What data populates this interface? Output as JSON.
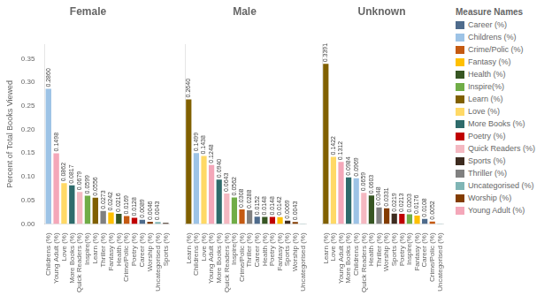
{
  "chart_data": [
    {
      "type": "bar",
      "title": "Female",
      "ylabel": "Percent of Total Books Viewed",
      "categories": [
        "Childrens (%)",
        "Young Adult (%)",
        "Love (%)",
        "More Books (%)",
        "Quick Readers (%)",
        "Inspire(%)",
        "Learn (%)",
        "Thriller (%)",
        "Fantasy (%)",
        "Health (%)",
        "Crime/Polic (%)",
        "Poetry (%)",
        "Career (%)",
        "Worship (%)",
        "Uncategorised (%)",
        "Sports (%)"
      ],
      "values": [
        0.286,
        0.1498,
        0.0862,
        0.0817,
        0.0679,
        0.0599,
        0.0556,
        0.0273,
        0.0242,
        0.0216,
        0.0169,
        0.0128,
        0.0089,
        0.0046,
        0.0043,
        0.0024
      ],
      "value_labels": [
        "0.2860",
        "0.1498",
        "0.0862",
        "0.0817",
        "0.0679",
        "0.0599",
        "0.0556",
        "0.0273",
        "0.0242",
        "0.0216",
        "0.0169",
        "0.0128",
        "0.0089",
        "0.0046",
        "0.0043",
        null
      ],
      "colors": [
        "#9dc3e6",
        "#f4a7b9",
        "#ffd966",
        "#2e6b6b",
        "#f4b8c1",
        "#70ad47",
        "#806000",
        "#808080",
        "#ffc000",
        "#375623",
        "#c55a11",
        "#c00000",
        "#4e6b8c",
        "#833c00",
        "#7fb5b5",
        "#3d2b1f"
      ],
      "ylim": [
        0,
        0.38
      ],
      "yticks": [
        {
          "value": 0.0,
          "label": "0.00"
        },
        0.05,
        {
          "value": 0.1,
          "label": "0.10"
        },
        0.15,
        {
          "value": 0.2,
          "label": "0.20"
        },
        0.25,
        {
          "value": 0.3,
          "label": "0.30"
        },
        0.35
      ],
      "data_labels": true,
      "grid": false
    },
    {
      "type": "bar",
      "title": "Male",
      "categories": [
        "Learn (%)",
        "Childrens (%)",
        "Love (%)",
        "Young Adult (%)",
        "More Books (%)",
        "Quick Readers (%)",
        "Inspire(%)",
        "Crime/Polic (%)",
        "Thriller (%)",
        "Career (%)",
        "Health (%)",
        "Poetry (%)",
        "Fantasy (%)",
        "Sports (%)",
        "Worship (%)",
        "Uncategorised (%)"
      ],
      "values": [
        0.264,
        0.1499,
        0.1438,
        0.1248,
        0.094,
        0.0643,
        0.0562,
        0.0308,
        0.0288,
        0.0152,
        0.0148,
        0.0148,
        0.0142,
        0.0069,
        0.0043,
        0.0007
      ],
      "value_labels": [
        "0.2640",
        "0.1499",
        "0.1438",
        "0.1248",
        "0.0940",
        "0.0643",
        "0.0562",
        "0.0308",
        "0.0288",
        "0.0152",
        "0.0148",
        "0.0148",
        "0.0142",
        "0.0069",
        "0.0043",
        null
      ],
      "colors": [
        "#806000",
        "#9dc3e6",
        "#ffd966",
        "#f4a7b9",
        "#2e6b6b",
        "#f4b8c1",
        "#70ad47",
        "#c55a11",
        "#808080",
        "#4e6b8c",
        "#375623",
        "#c00000",
        "#ffc000",
        "#3d2b1f",
        "#833c00",
        "#7fb5b5"
      ],
      "ylim": [
        0,
        0.38
      ],
      "yticks": [
        {
          "value": 0.0,
          "label": "0.00"
        },
        0.05,
        {
          "value": 0.1,
          "label": "0.10"
        },
        0.15,
        {
          "value": 0.2,
          "label": "0.20"
        },
        0.25,
        {
          "value": 0.3,
          "label": "0.30"
        },
        0.35
      ],
      "tick_labels": "x",
      "data_labels": true,
      "grid": false
    },
    {
      "type": "bar",
      "title": "Unknown",
      "categories": [
        "Learn (%)",
        "Love (%)",
        "Young Adult (%)",
        "More Books (%)",
        "Childrens (%)",
        "Quick Readers (%)",
        "Health (%)",
        "Thriller (%)",
        "Worship (%)",
        "Sports (%)",
        "Poetry (%)",
        "Inspire(%)",
        "Fantasy (%)",
        "Career (%)",
        "Crime/Polic (%)",
        "Uncategorised (%)"
      ],
      "values": [
        0.3391,
        0.1422,
        0.1312,
        0.0984,
        0.0969,
        0.0659,
        0.0603,
        0.0348,
        0.0331,
        0.0219,
        0.0213,
        0.0203,
        0.0176,
        0.0108,
        0.0052,
        0.0007
      ],
      "value_labels": [
        "0.3391",
        "0.1422",
        "0.1312",
        "0.0984",
        "0.0969",
        "0.0659",
        "0.0603",
        "0.0348",
        "0.0331",
        "0.0219",
        "0.0213",
        "0.0203",
        "0.0176",
        "0.0108",
        "0.0052",
        null
      ],
      "colors": [
        "#806000",
        "#ffd966",
        "#f4a7b9",
        "#2e6b6b",
        "#9dc3e6",
        "#f4b8c1",
        "#375623",
        "#808080",
        "#833c00",
        "#3d2b1f",
        "#c00000",
        "#70ad47",
        "#ffc000",
        "#4e6b8c",
        "#c55a11",
        "#7fb5b5"
      ],
      "ylim": [
        0,
        0.38
      ],
      "yticks": [
        {
          "value": 0.0,
          "label": "0.00"
        },
        0.05,
        {
          "value": 0.1,
          "label": "0.10"
        },
        0.15,
        {
          "value": 0.2,
          "label": "0.20"
        },
        0.25,
        {
          "value": 0.3,
          "label": "0.30"
        },
        0.35
      ],
      "tick_labels": "x",
      "data_labels": true,
      "grid": false
    }
  ],
  "legend": "upper right",
  "legend_title": "Measure Names",
  "legend_entries": [
    {
      "name": "Career (%)",
      "color": "#4e6b8c"
    },
    {
      "name": "Childrens (%)",
      "color": "#9dc3e6"
    },
    {
      "name": "Crime/Polic (%)",
      "color": "#c55a11"
    },
    {
      "name": "Fantasy (%)",
      "color": "#ffc000"
    },
    {
      "name": "Health (%)",
      "color": "#375623"
    },
    {
      "name": "Inspire(%)",
      "color": "#70ad47"
    },
    {
      "name": "Learn (%)",
      "color": "#806000"
    },
    {
      "name": "Love (%)",
      "color": "#ffd966"
    },
    {
      "name": "More Books (%)",
      "color": "#2e6b6b"
    },
    {
      "name": "Poetry (%)",
      "color": "#c00000"
    },
    {
      "name": "Quick Readers (%)",
      "color": "#f4b8c1"
    },
    {
      "name": "Sports (%)",
      "color": "#3d2b1f"
    },
    {
      "name": "Thriller (%)",
      "color": "#808080"
    },
    {
      "name": "Uncategorised (%)",
      "color": "#7fb5b5"
    },
    {
      "name": "Worship (%)",
      "color": "#833c00"
    },
    {
      "name": "Young Adult (%)",
      "color": "#f4a7b9"
    }
  ]
}
